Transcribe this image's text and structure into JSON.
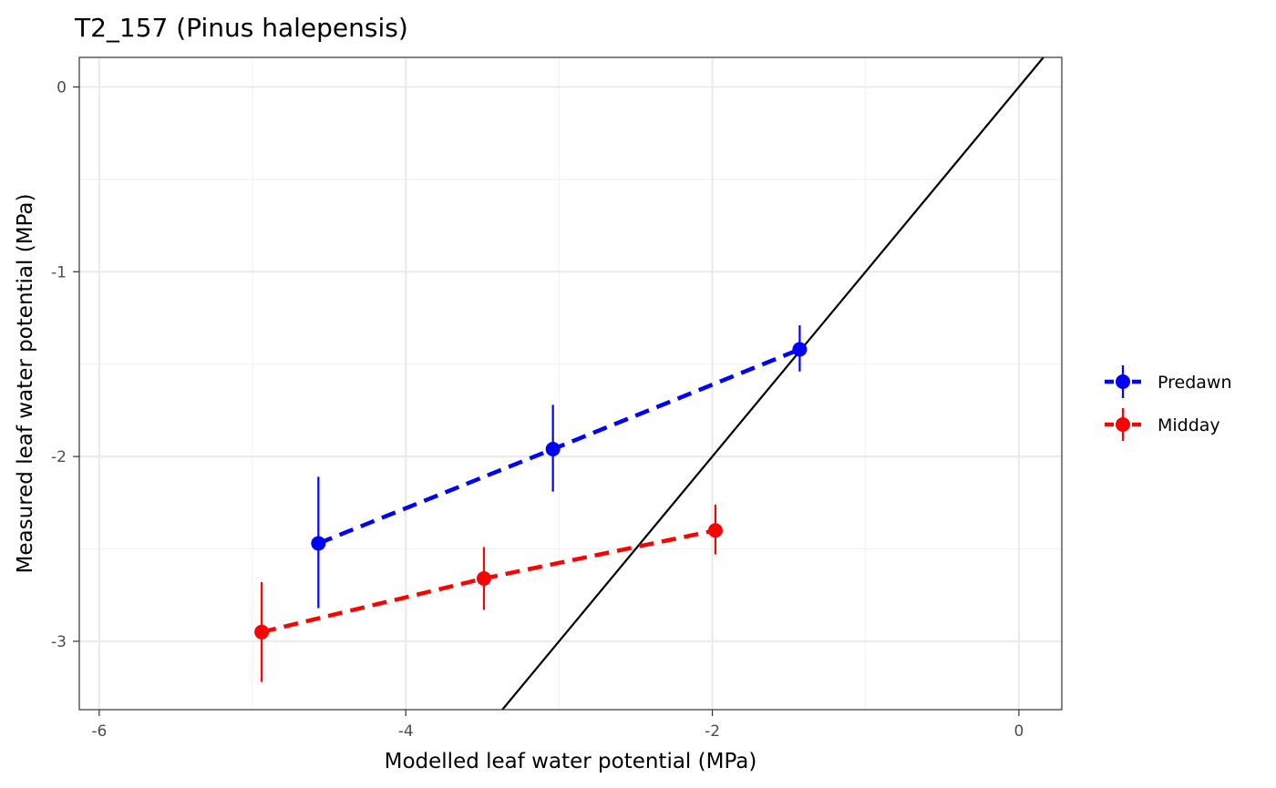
{
  "chart_data": {
    "type": "scatter",
    "title": "T2_157 (Pinus halepensis)",
    "xlabel": "Modelled leaf water potential (MPa)",
    "ylabel": "Measured leaf water potential (MPa)",
    "xlim": [
      -6.13,
      0.28
    ],
    "ylim": [
      -3.37,
      0.16
    ],
    "x_ticks": [
      -6,
      -4,
      -2,
      0
    ],
    "x_tick_labels": [
      "-6",
      "-4",
      "-2",
      "0"
    ],
    "y_ticks": [
      -3,
      -2,
      -1,
      0
    ],
    "y_tick_labels": [
      "-3",
      "-2",
      "-1",
      "0"
    ],
    "grid": true,
    "reference_line": {
      "slope": 1,
      "intercept": 0,
      "color": "#000000"
    },
    "legend_position": "right",
    "series": [
      {
        "name": "Predawn",
        "color": "#0000ff",
        "line_style": "dashed",
        "points": [
          {
            "x": -4.57,
            "y": -2.47,
            "ymin": -2.82,
            "ymax": -2.11
          },
          {
            "x": -3.04,
            "y": -1.96,
            "ymin": -2.19,
            "ymax": -1.72
          },
          {
            "x": -1.43,
            "y": -1.42,
            "ymin": -1.54,
            "ymax": -1.29
          }
        ]
      },
      {
        "name": "Midday",
        "color": "#ff0000",
        "line_style": "dashed",
        "points": [
          {
            "x": -4.94,
            "y": -2.95,
            "ymin": -3.22,
            "ymax": -2.68
          },
          {
            "x": -3.49,
            "y": -2.66,
            "ymin": -2.83,
            "ymax": -2.49
          },
          {
            "x": -1.98,
            "y": -2.4,
            "ymin": -2.53,
            "ymax": -2.26
          }
        ]
      }
    ]
  }
}
